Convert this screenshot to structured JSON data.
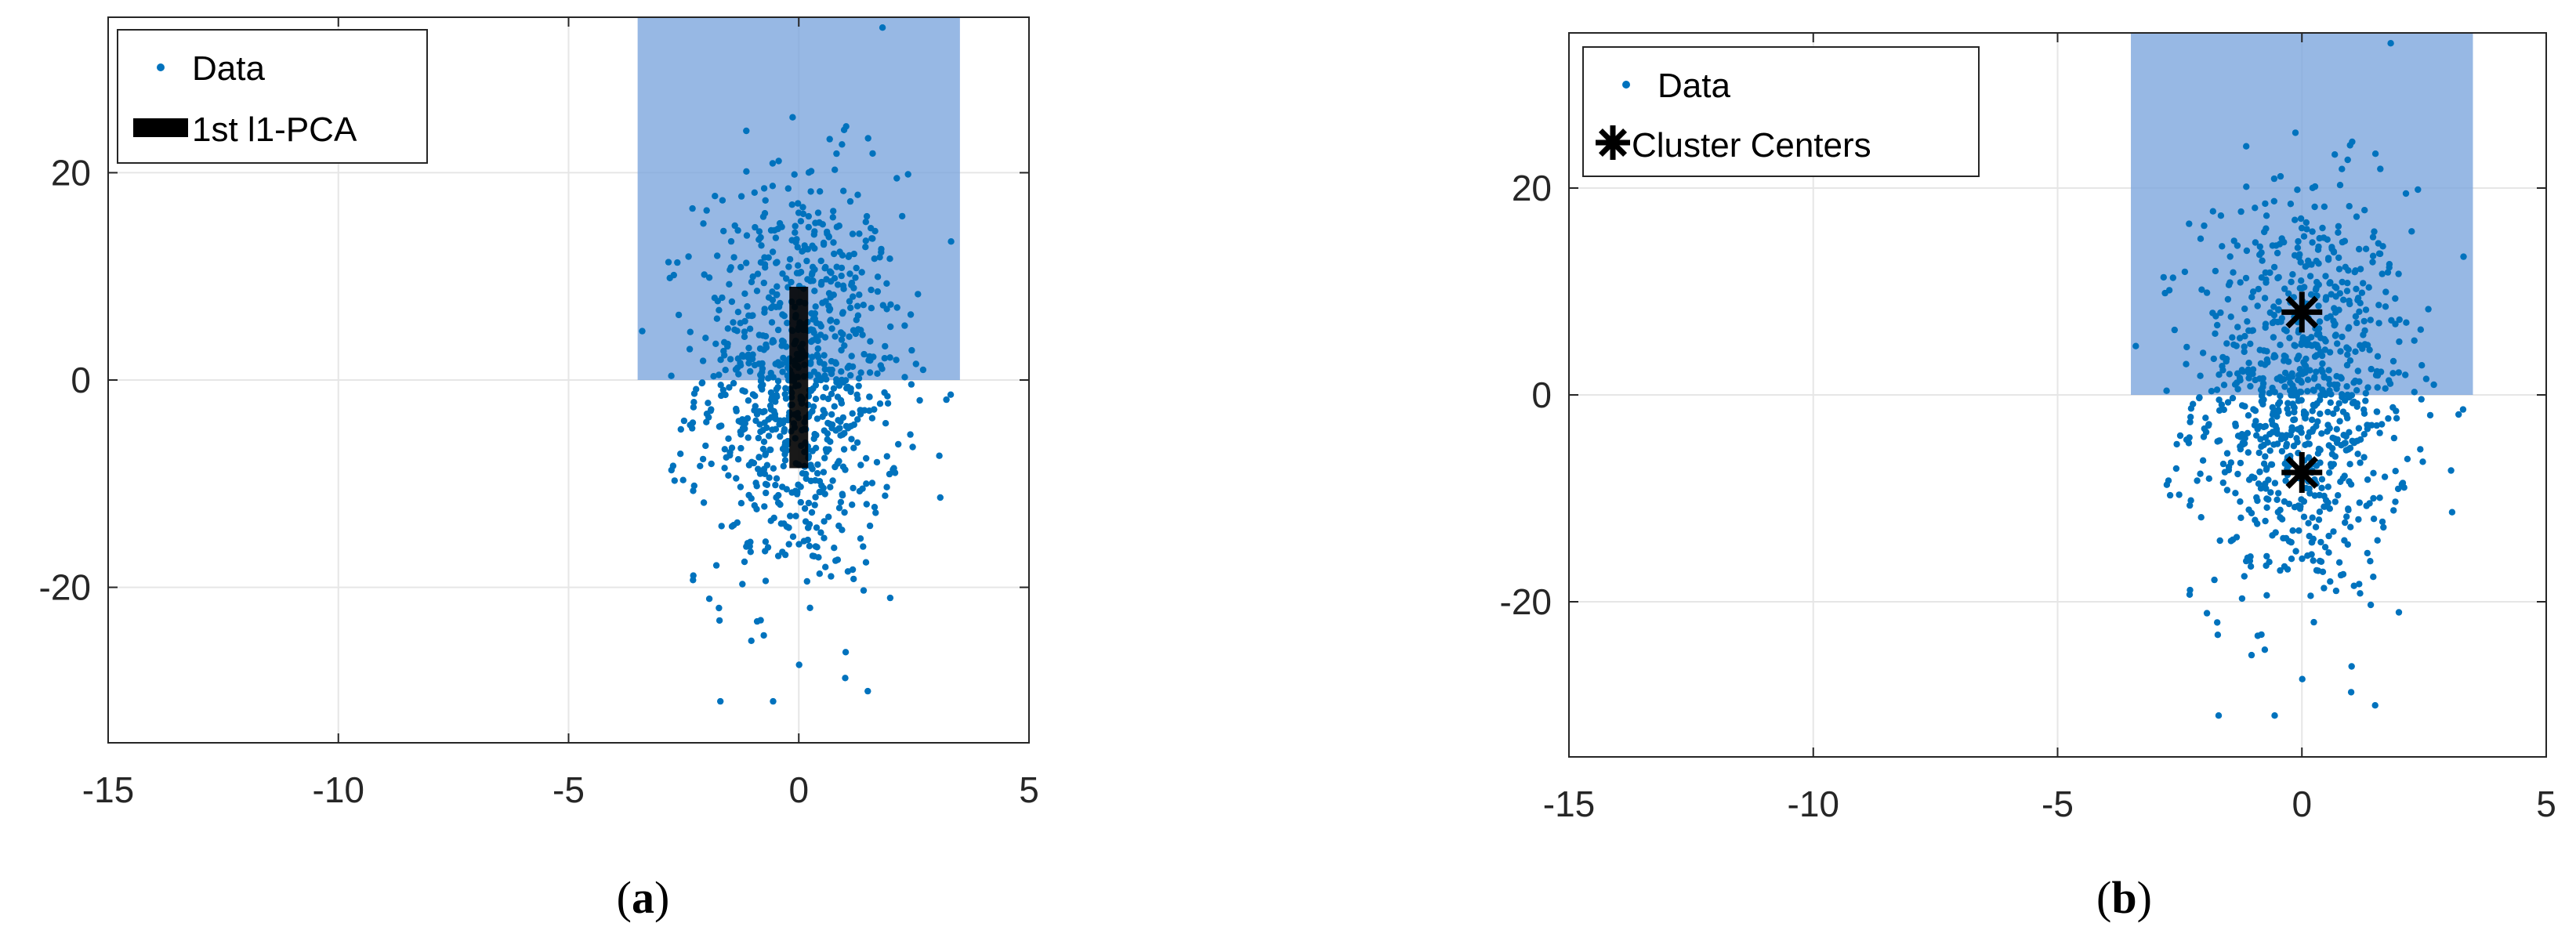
{
  "chart_data": [
    {
      "panel_label_prefix": "(",
      "panel_label_letter": "a",
      "panel_label_suffix": ")",
      "type": "scatter",
      "xlim": [
        -15,
        5
      ],
      "ylim": [
        -35,
        35
      ],
      "xticks": [
        "-15",
        "-10",
        "-5",
        "0",
        "5"
      ],
      "yticks": [
        "-20",
        "0",
        "20"
      ],
      "grid": true,
      "legend_position": "top-left",
      "data_color": "#0072bd",
      "region_color": "#7aa4dd",
      "shaded_region": {
        "x": [
          -3.5,
          3.5
        ],
        "y": [
          0,
          35
        ]
      },
      "series": [
        {
          "name": "Data",
          "marker": "point",
          "distribution": {
            "x_center": 0,
            "x_spread": 1.1,
            "y_center": 0,
            "y_spread": 10,
            "count": 900,
            "y_min": -31,
            "y_max": 34
          }
        },
        {
          "name": "1st l1-PCA",
          "marker": "thick-line",
          "color": "#000000",
          "x": [
            0,
            0
          ],
          "y": [
            -8.5,
            9
          ]
        }
      ]
    },
    {
      "panel_label_prefix": "(",
      "panel_label_letter": "b",
      "panel_label_suffix": ")",
      "type": "scatter",
      "xlim": [
        -15,
        5
      ],
      "ylim": [
        -35,
        35
      ],
      "xticks": [
        "-15",
        "-10",
        "-5",
        "0",
        "5"
      ],
      "yticks": [
        "-20",
        "0",
        "20"
      ],
      "grid": true,
      "legend_position": "top-left",
      "data_color": "#0072bd",
      "region_color": "#7aa4dd",
      "shaded_region": {
        "x": [
          -3.5,
          3.5
        ],
        "y": [
          0,
          35
        ]
      },
      "series": [
        {
          "name": "Data",
          "marker": "point",
          "distribution": {
            "x_center": 0,
            "x_spread": 1.1,
            "y_center": 0,
            "y_spread": 10,
            "count": 900,
            "y_min": -31,
            "y_max": 34
          }
        },
        {
          "name": "Cluster Centers",
          "marker": "asterisk",
          "color": "#000000",
          "points": [
            [
              0,
              8
            ],
            [
              0,
              -7.5
            ]
          ]
        }
      ]
    }
  ]
}
